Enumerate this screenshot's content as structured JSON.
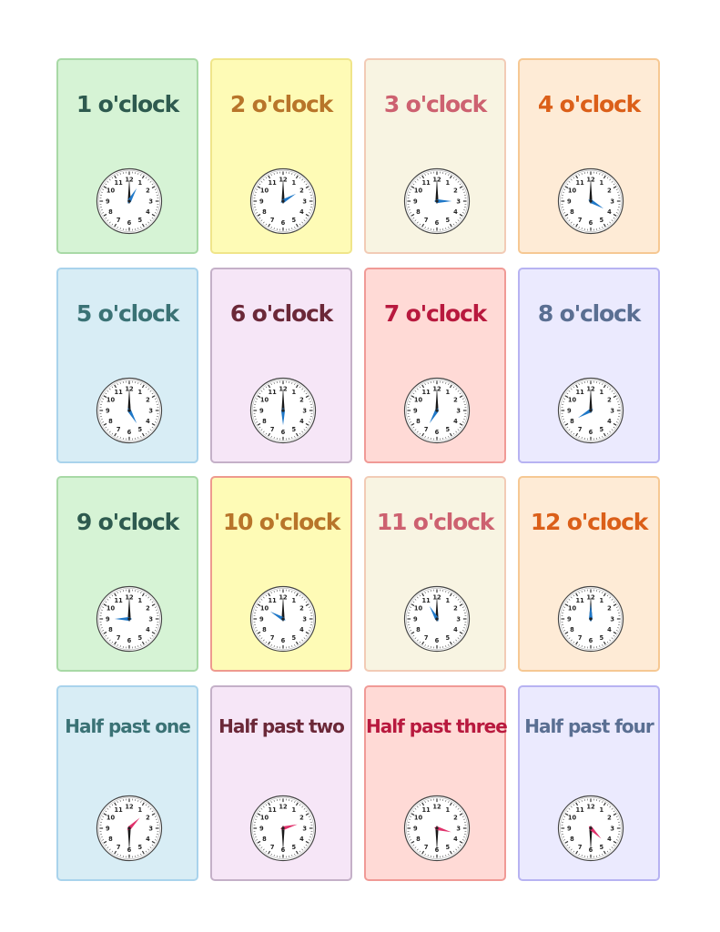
{
  "cards": [
    {
      "label": "1 o'clock",
      "hour": 1,
      "minute": 0,
      "bg": "#d6f3d5",
      "border": "#a8d9a6",
      "text": "#2e5a4f",
      "hand": "#1f78c8"
    },
    {
      "label": "2 o'clock",
      "hour": 2,
      "minute": 0,
      "bg": "#fefbb6",
      "border": "#f0e58a",
      "text": "#b8752a",
      "hand": "#1f78c8"
    },
    {
      "label": "3 o'clock",
      "hour": 3,
      "minute": 0,
      "bg": "#f8f4e2",
      "border": "#f2cbb6",
      "text": "#cd6170",
      "hand": "#1f78c8"
    },
    {
      "label": "4 o'clock",
      "hour": 4,
      "minute": 0,
      "bg": "#feebd6",
      "border": "#f6c893",
      "text": "#db5f19",
      "hand": "#1f78c8"
    },
    {
      "label": "5 o'clock",
      "hour": 5,
      "minute": 0,
      "bg": "#d8edf5",
      "border": "#a9d3ec",
      "text": "#3a7275",
      "hand": "#1f78c8"
    },
    {
      "label": "6 o'clock",
      "hour": 6,
      "minute": 0,
      "bg": "#f6e6f7",
      "border": "#c4b0c8",
      "text": "#6b2838",
      "hand": "#1f78c8"
    },
    {
      "label": "7 o'clock",
      "hour": 7,
      "minute": 0,
      "bg": "#ffdad6",
      "border": "#f09a96",
      "text": "#b8193e",
      "hand": "#1f78c8"
    },
    {
      "label": "8 o'clock",
      "hour": 8,
      "minute": 0,
      "bg": "#ebeafe",
      "border": "#b7b3f2",
      "text": "#5a6f92",
      "hand": "#1f78c8"
    },
    {
      "label": "9 o'clock",
      "hour": 9,
      "minute": 0,
      "bg": "#d6f3d5",
      "border": "#a8d9a6",
      "text": "#2e5a4f",
      "hand": "#1f78c8"
    },
    {
      "label": "10 o'clock",
      "hour": 10,
      "minute": 0,
      "bg": "#fefbb6",
      "border": "#ee9a8e",
      "text": "#b8752a",
      "hand": "#1f78c8"
    },
    {
      "label": "11 o'clock",
      "hour": 11,
      "minute": 0,
      "bg": "#f8f4e2",
      "border": "#f2cbb6",
      "text": "#cd6170",
      "hand": "#1f78c8"
    },
    {
      "label": "12 o'clock",
      "hour": 12,
      "minute": 0,
      "bg": "#feebd6",
      "border": "#f6c893",
      "text": "#db5f19",
      "hand": "#1f78c8"
    },
    {
      "label": "Half past one",
      "hour": 1,
      "minute": 30,
      "bg": "#d8edf5",
      "border": "#a9d3ec",
      "text": "#3a7275",
      "hand": "#e0316b"
    },
    {
      "label": "Half past two",
      "hour": 2,
      "minute": 30,
      "bg": "#f6e6f7",
      "border": "#c4b0c8",
      "text": "#6b2838",
      "hand": "#e0316b"
    },
    {
      "label": "Half past three",
      "hour": 3,
      "minute": 30,
      "bg": "#ffdad6",
      "border": "#f09a96",
      "text": "#b8193e",
      "hand": "#e0316b"
    },
    {
      "label": "Half past four",
      "hour": 4,
      "minute": 30,
      "bg": "#ebeafe",
      "border": "#b7b3f2",
      "text": "#5a6f92",
      "hand": "#e0316b"
    }
  ]
}
